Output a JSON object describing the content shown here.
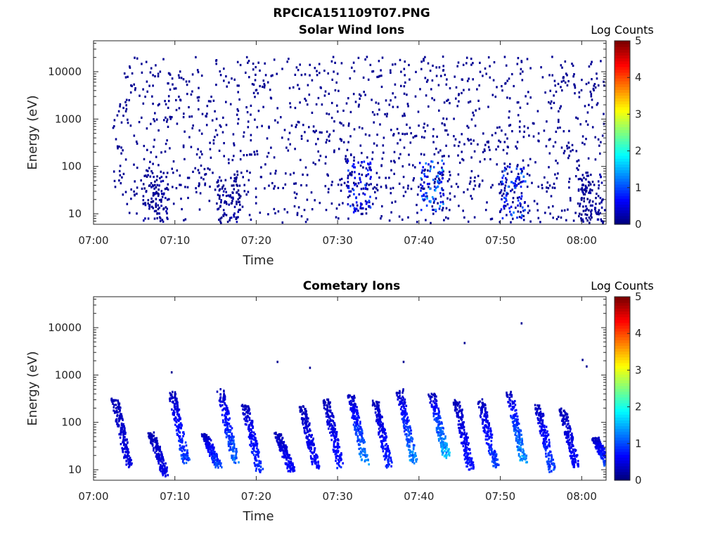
{
  "figure": {
    "title": "RPCICA151109T07.PNG"
  },
  "colormap": {
    "name": "jet",
    "stops": [
      "#00007f",
      "#0000ff",
      "#007fff",
      "#00ffff",
      "#7fff7f",
      "#ffff00",
      "#ff7f00",
      "#ff0000",
      "#7f0000"
    ]
  },
  "chart_data": [
    {
      "type": "heatmap",
      "title": "Solar Wind Ions",
      "xlabel": "Time",
      "ylabel": "Energy (eV)",
      "x_range_minutes_after_0700": [
        0,
        63
      ],
      "x_ticks": [
        "07:00",
        "07:10",
        "07:20",
        "07:30",
        "07:40",
        "07:50",
        "08:00"
      ],
      "y_scale": "log",
      "ylim": [
        6,
        45000
      ],
      "y_ticks": [
        "10",
        "100",
        "1000",
        "10000"
      ],
      "colorbar": {
        "label": "Log Counts",
        "range": [
          0,
          5
        ],
        "ticks": [
          "0",
          "1",
          "2",
          "3",
          "4",
          "5"
        ]
      },
      "description": "Sparse single-count dots (log counts ~0) across 40 eV–20000 eV from 07:03 to 08:03, with denser low-energy streaks (10–100 eV) near 07:32, 07:41 and 07:51.",
      "clusters": [
        {
          "t": 7.5,
          "e": 20,
          "level": 0.05
        },
        {
          "t": 16.5,
          "e": 20,
          "level": 0.05
        },
        {
          "t": 32.5,
          "e": 40,
          "level": 0.2
        },
        {
          "t": 41.5,
          "e": 40,
          "level": 0.3
        },
        {
          "t": 51.5,
          "e": 30,
          "level": 0.25
        },
        {
          "t": 61.0,
          "e": 20,
          "level": 0.05
        }
      ]
    },
    {
      "type": "heatmap",
      "title": "Cometary Ions",
      "xlabel": "Time",
      "ylabel": "Energy (eV)",
      "x_range_minutes_after_0700": [
        0,
        63
      ],
      "x_ticks": [
        "07:00",
        "07:10",
        "07:20",
        "07:30",
        "07:40",
        "07:50",
        "08:00"
      ],
      "y_scale": "log",
      "ylim": [
        6,
        45000
      ],
      "y_ticks": [
        "10",
        "100",
        "1000",
        "10000"
      ],
      "colorbar": {
        "label": "Log Counts",
        "range": [
          0,
          5
        ],
        "ticks": [
          "0",
          "1",
          "2",
          "3",
          "4",
          "5"
        ]
      },
      "description": "Repeating dispersed bands of cometary ions, each sweeping from ~300 eV down to ~10 eV over ~2 minutes, with peak log counts about 1.5 near 07:42 and 07:52.",
      "bursts": [
        {
          "t": 2.5,
          "e_top": 350,
          "e_bot": 12,
          "peak": 0.3
        },
        {
          "t": 7.0,
          "e_top": 60,
          "e_bot": 8,
          "peak": 0.35
        },
        {
          "t": 9.5,
          "e_top": 450,
          "e_bot": 15,
          "peak": 0.9
        },
        {
          "t": 13.5,
          "e_top": 60,
          "e_bot": 12,
          "peak": 0.9
        },
        {
          "t": 15.5,
          "e_top": 500,
          "e_bot": 15,
          "peak": 1.1
        },
        {
          "t": 18.5,
          "e_top": 250,
          "e_bot": 10,
          "peak": 0.8
        },
        {
          "t": 22.5,
          "e_top": 60,
          "e_bot": 10,
          "peak": 0.5
        },
        {
          "t": 25.5,
          "e_top": 220,
          "e_bot": 12,
          "peak": 0.5
        },
        {
          "t": 28.5,
          "e_top": 300,
          "e_bot": 12,
          "peak": 0.6
        },
        {
          "t": 31.5,
          "e_top": 400,
          "e_bot": 15,
          "peak": 1.3
        },
        {
          "t": 34.5,
          "e_top": 300,
          "e_bot": 12,
          "peak": 0.7
        },
        {
          "t": 37.5,
          "e_top": 500,
          "e_bot": 15,
          "peak": 1.3
        },
        {
          "t": 41.5,
          "e_top": 400,
          "e_bot": 20,
          "peak": 1.6
        },
        {
          "t": 44.5,
          "e_top": 300,
          "e_bot": 10,
          "peak": 0.6
        },
        {
          "t": 47.5,
          "e_top": 300,
          "e_bot": 12,
          "peak": 0.9
        },
        {
          "t": 51.0,
          "e_top": 450,
          "e_bot": 15,
          "peak": 1.5
        },
        {
          "t": 54.5,
          "e_top": 250,
          "e_bot": 10,
          "peak": 0.9
        },
        {
          "t": 57.5,
          "e_top": 200,
          "e_bot": 12,
          "peak": 0.5
        },
        {
          "t": 61.5,
          "e_top": 50,
          "e_bot": 12,
          "peak": 1.0
        }
      ],
      "isolated_points": [
        {
          "t": 9.5,
          "e": 1200
        },
        {
          "t": 22.5,
          "e": 2000
        },
        {
          "t": 26.5,
          "e": 1500
        },
        {
          "t": 38.0,
          "e": 2000
        },
        {
          "t": 45.5,
          "e": 5000
        },
        {
          "t": 52.5,
          "e": 13000
        },
        {
          "t": 60.0,
          "e": 2200
        },
        {
          "t": 60.5,
          "e": 1600
        }
      ]
    }
  ]
}
